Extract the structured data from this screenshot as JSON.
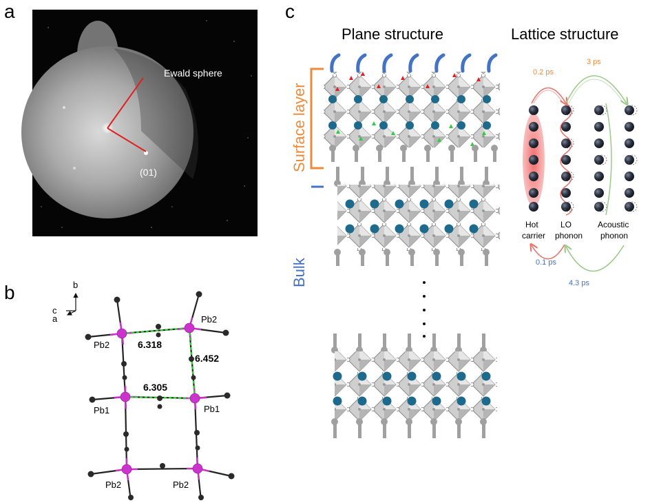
{
  "panel_a": {
    "label": "a",
    "ewald_label": "Ewald sphere",
    "spot_label": "(01)"
  },
  "panel_b": {
    "label": "b",
    "axes": {
      "b": "b",
      "c": "c",
      "a": "a"
    },
    "distances": {
      "top": "6.318",
      "right": "6.452",
      "middle": "6.305"
    },
    "atoms": {
      "top_left": "Pb2",
      "top_right": "Pb2",
      "mid_left": "Pb1",
      "mid_right": "Pb1",
      "bottom_left": "Pb2",
      "bottom_right": "Pb2"
    }
  },
  "panel_c": {
    "label": "c",
    "plane_title": "Plane structure",
    "lattice_title": "Lattice structure",
    "surface_label": "Surface layer",
    "bulk_label": "Bulk",
    "columns": [
      {
        "line1": "Hot",
        "line2": "carrier"
      },
      {
        "line1": "LO",
        "line2": "phonon"
      },
      {
        "line1": "Acoustic",
        "line2": "phonon"
      }
    ],
    "times": {
      "top_inner": "0.2 ps",
      "top_outer": "3 ps",
      "bottom_inner": "0.1 ps",
      "bottom_outer": "4.3 ps"
    },
    "colors": {
      "orange": "#ee8a3a",
      "blue": "#4472c4",
      "teal_cation": "#1d6a8c",
      "red_arrow": "#e8736b",
      "green_arrow": "#9cc98a",
      "pb_magenta": "#cc33cc"
    }
  }
}
